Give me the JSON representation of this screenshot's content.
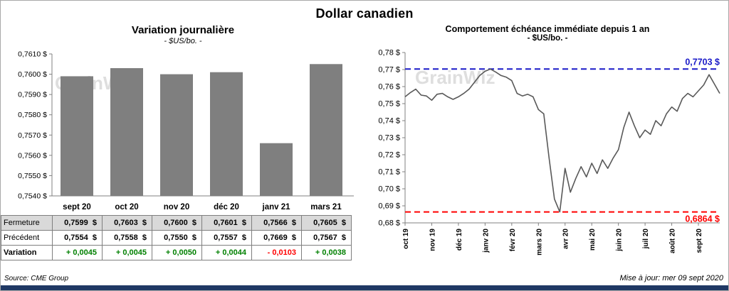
{
  "page": {
    "title": "Dollar canadien",
    "source": "Source: CME Group",
    "updated": "Mise à jour: mer 09 sept 2020",
    "watermark": "GrainWiz",
    "accent_bar_color": "#1f3864"
  },
  "left": {
    "title": "Variation  journalière",
    "subtitle": "- $US/bo. -",
    "months": [
      "sept 20",
      "oct 20",
      "nov 20",
      "déc 20",
      "janv 21",
      "mars 21"
    ],
    "table": [
      {
        "id": "fermeture",
        "label": "Fermeture",
        "values": [
          "0,7599  $",
          "0,7603  $",
          "0,7600  $",
          "0,7601  $",
          "0,7566  $",
          "0,7605  $"
        ]
      },
      {
        "id": "precedent",
        "label": "Précédent",
        "values": [
          "0,7554  $",
          "0,7558  $",
          "0,7550  $",
          "0,7557  $",
          "0,7669  $",
          "0,7567  $"
        ]
      },
      {
        "id": "variation",
        "label": "Variation",
        "values": [
          "+ 0,0045",
          "+ 0,0045",
          "+ 0,0050",
          "+ 0,0044",
          "- 0,0103",
          "+ 0,0038"
        ]
      }
    ],
    "colors": {
      "positive": "#008000",
      "negative": "#ff0000",
      "shaded_row": "#d9d9d9"
    }
  },
  "right": {
    "title": "Comportement échéance immédiate depuis 1 an",
    "subtitle": "- $US/bo. -"
  },
  "chart_data": [
    {
      "type": "bar",
      "title": "Variation journalière",
      "subtitle": "- $US/bo. -",
      "categories": [
        "sept 20",
        "oct 20",
        "nov 20",
        "déc 20",
        "janv 21",
        "mars 21"
      ],
      "values": [
        0.7599,
        0.7603,
        0.76,
        0.7601,
        0.7566,
        0.7605
      ],
      "ylim": [
        0.754,
        0.761
      ],
      "ytick_step": 0.001,
      "bar_color": "#7f7f7f",
      "grid": false,
      "legend": "none"
    },
    {
      "type": "line",
      "title": "Comportement échéance immédiate depuis 1 an",
      "subtitle": "- $US/bo. -",
      "x": [
        "oct 19",
        "nov 19",
        "déc 19",
        "janv 20",
        "févr 20",
        "mars 20",
        "avr 20",
        "mai 20",
        "juin 20",
        "juil 20",
        "août 20",
        "sept 20"
      ],
      "values": [
        0.754,
        0.7565,
        0.7585,
        0.755,
        0.7545,
        0.752,
        0.7555,
        0.756,
        0.754,
        0.7525,
        0.754,
        0.756,
        0.7585,
        0.7625,
        0.7665,
        0.769,
        0.7703,
        0.7685,
        0.7665,
        0.7655,
        0.7635,
        0.756,
        0.7545,
        0.7555,
        0.754,
        0.7465,
        0.744,
        0.718,
        0.694,
        0.6864,
        0.712,
        0.698,
        0.706,
        0.713,
        0.707,
        0.715,
        0.709,
        0.717,
        0.712,
        0.718,
        0.723,
        0.736,
        0.745,
        0.737,
        0.73,
        0.7345,
        0.732,
        0.74,
        0.737,
        0.744,
        0.748,
        0.7455,
        0.753,
        0.756,
        0.754,
        0.7575,
        0.761,
        0.767,
        0.7615,
        0.756
      ],
      "ylim": [
        0.68,
        0.78
      ],
      "ytick_step": 0.01,
      "line_color": "#595959",
      "high_line": {
        "value": 0.7703,
        "label": "0,7703 $",
        "color": "#1a1ac8"
      },
      "low_line": {
        "value": 0.6864,
        "label": "0,6864 $",
        "color": "#ff0000"
      },
      "grid": false,
      "legend": "none"
    }
  ]
}
